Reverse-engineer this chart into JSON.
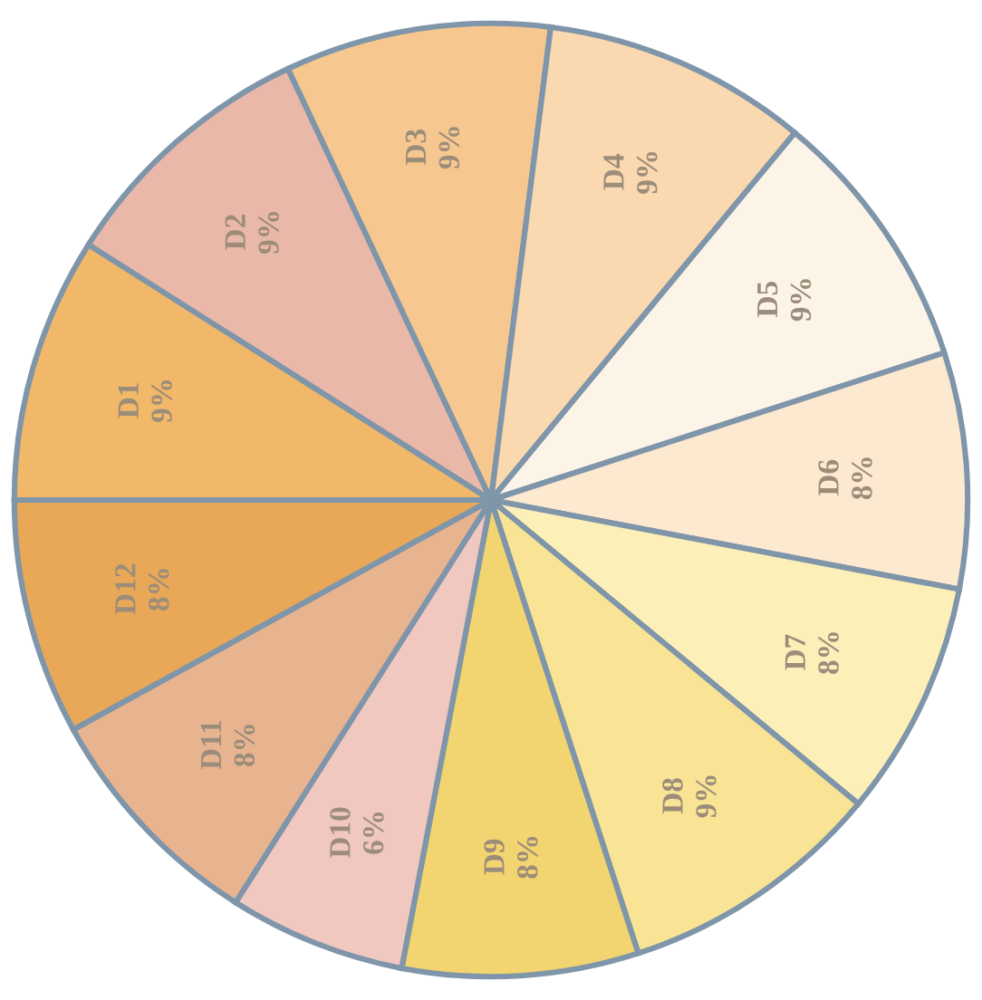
{
  "chart_data": {
    "type": "pie",
    "categories": [
      "D1",
      "D2",
      "D3",
      "D4",
      "D5",
      "D6",
      "D7",
      "D8",
      "D9",
      "D10",
      "D11",
      "D12"
    ],
    "values": [
      9,
      9,
      9,
      9,
      9,
      8,
      8,
      9,
      8,
      6,
      8,
      8
    ],
    "value_labels": [
      "9%",
      "9%",
      "9%",
      "9%",
      "9%",
      "8%",
      "8%",
      "9%",
      "8%",
      "6%",
      "8%",
      "8%"
    ],
    "colors": [
      "#f0b868",
      "#eab8a8",
      "#f6c890",
      "#fad8b0",
      "#fdf4e8",
      "#fde8d0",
      "#fcf0b8",
      "#f8e494",
      "#f2d470",
      "#f0c8c0",
      "#e8b490",
      "#e8a858"
    ],
    "legend": false
  }
}
